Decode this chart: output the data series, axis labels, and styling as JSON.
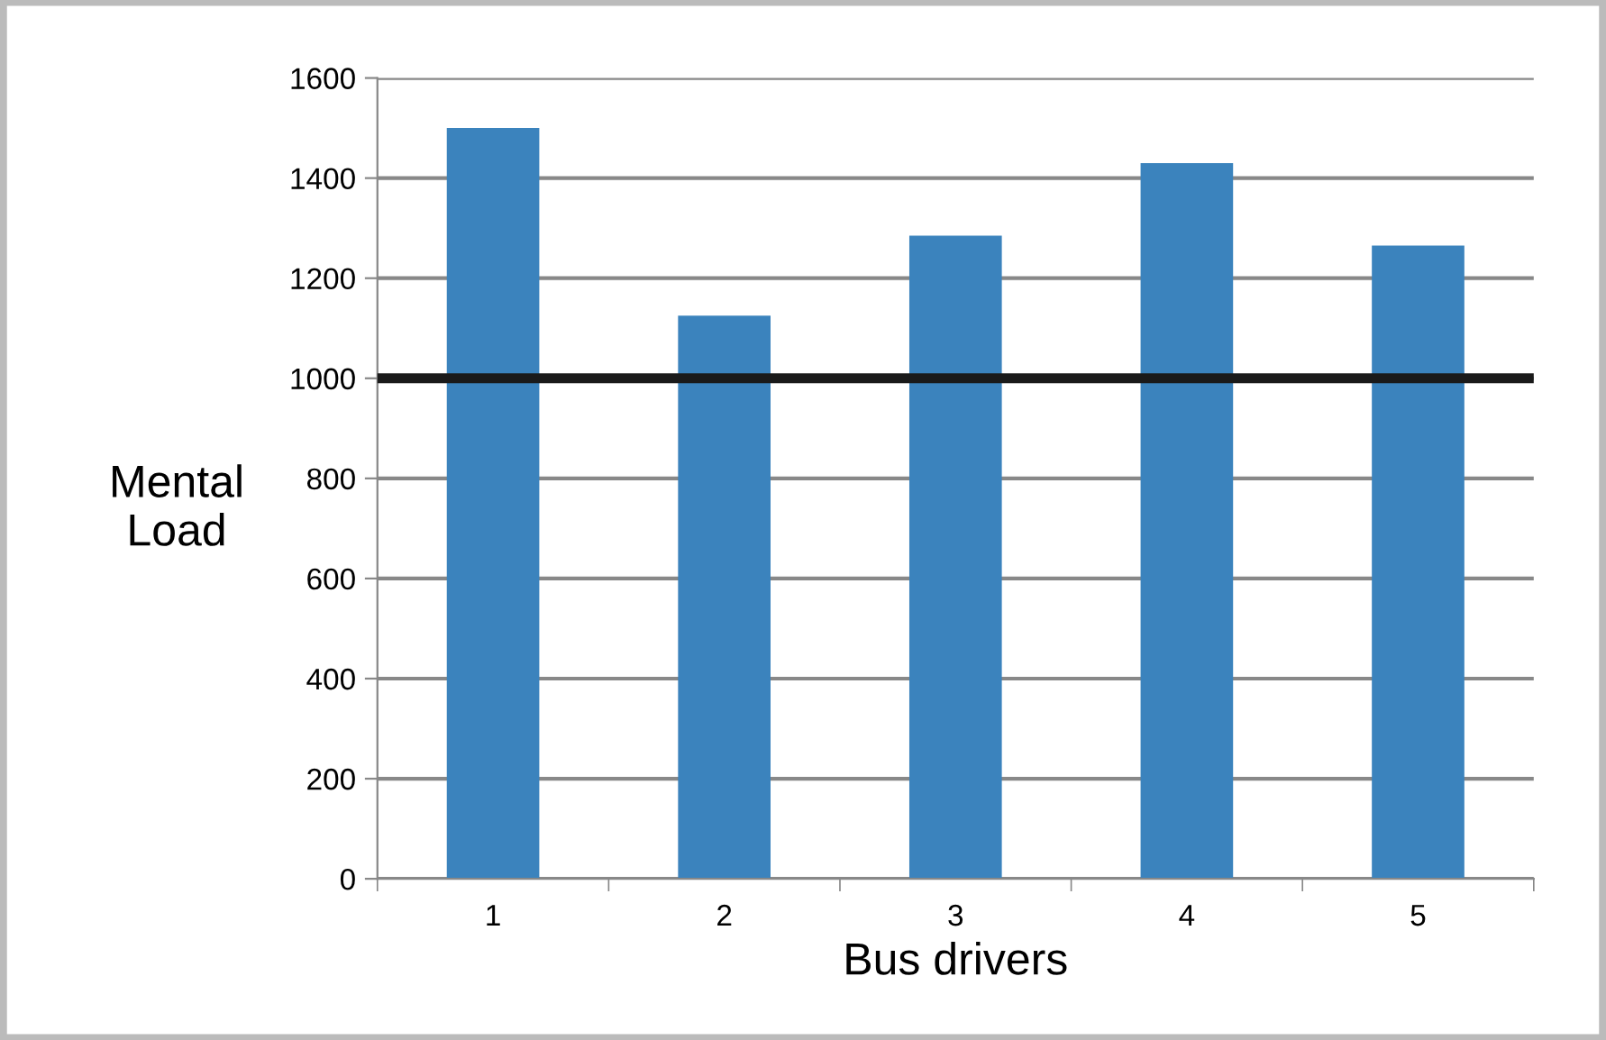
{
  "chart_data": {
    "type": "bar",
    "xlabel": "Bus drivers",
    "ylabel": "Mental\nLoad",
    "categories": [
      "1",
      "2",
      "3",
      "4",
      "5"
    ],
    "values": [
      1500,
      1125,
      1285,
      1430,
      1265
    ],
    "color": "#3b83bd",
    "ylim": [
      0,
      1600
    ],
    "yticks": [
      0,
      200,
      400,
      600,
      800,
      1000,
      1200,
      1400,
      1600
    ],
    "grid": "y",
    "legend": false,
    "ref_lines": [
      {
        "axis": "y",
        "value": 1000,
        "color": "#1a1a1a",
        "line_style": "solid"
      }
    ]
  }
}
